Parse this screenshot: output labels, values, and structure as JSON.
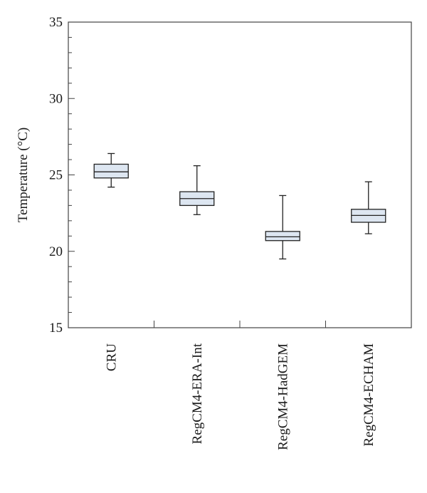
{
  "chart_data": {
    "type": "box",
    "ylabel": "Temperature (°C)",
    "ylim": [
      15,
      35
    ],
    "yticks": [
      15,
      20,
      25,
      30,
      35
    ],
    "y_minor_step": 1,
    "categories": [
      "CRU",
      "RegCM4-ERA-Int",
      "RegCM4-HadGEM",
      "RegCM4-ECHAM"
    ],
    "boxes": [
      {
        "min": 24.2,
        "q1": 24.8,
        "median": 25.2,
        "q3": 25.7,
        "max": 26.4
      },
      {
        "min": 22.4,
        "q1": 23.0,
        "median": 23.45,
        "q3": 23.9,
        "max": 25.6
      },
      {
        "min": 19.5,
        "q1": 20.7,
        "median": 20.95,
        "q3": 21.3,
        "max": 23.65
      },
      {
        "min": 21.15,
        "q1": 21.9,
        "median": 22.35,
        "q3": 22.75,
        "max": 24.55
      }
    ],
    "colors": {
      "box_fill": "#dde6f1",
      "line": "#222222"
    }
  }
}
